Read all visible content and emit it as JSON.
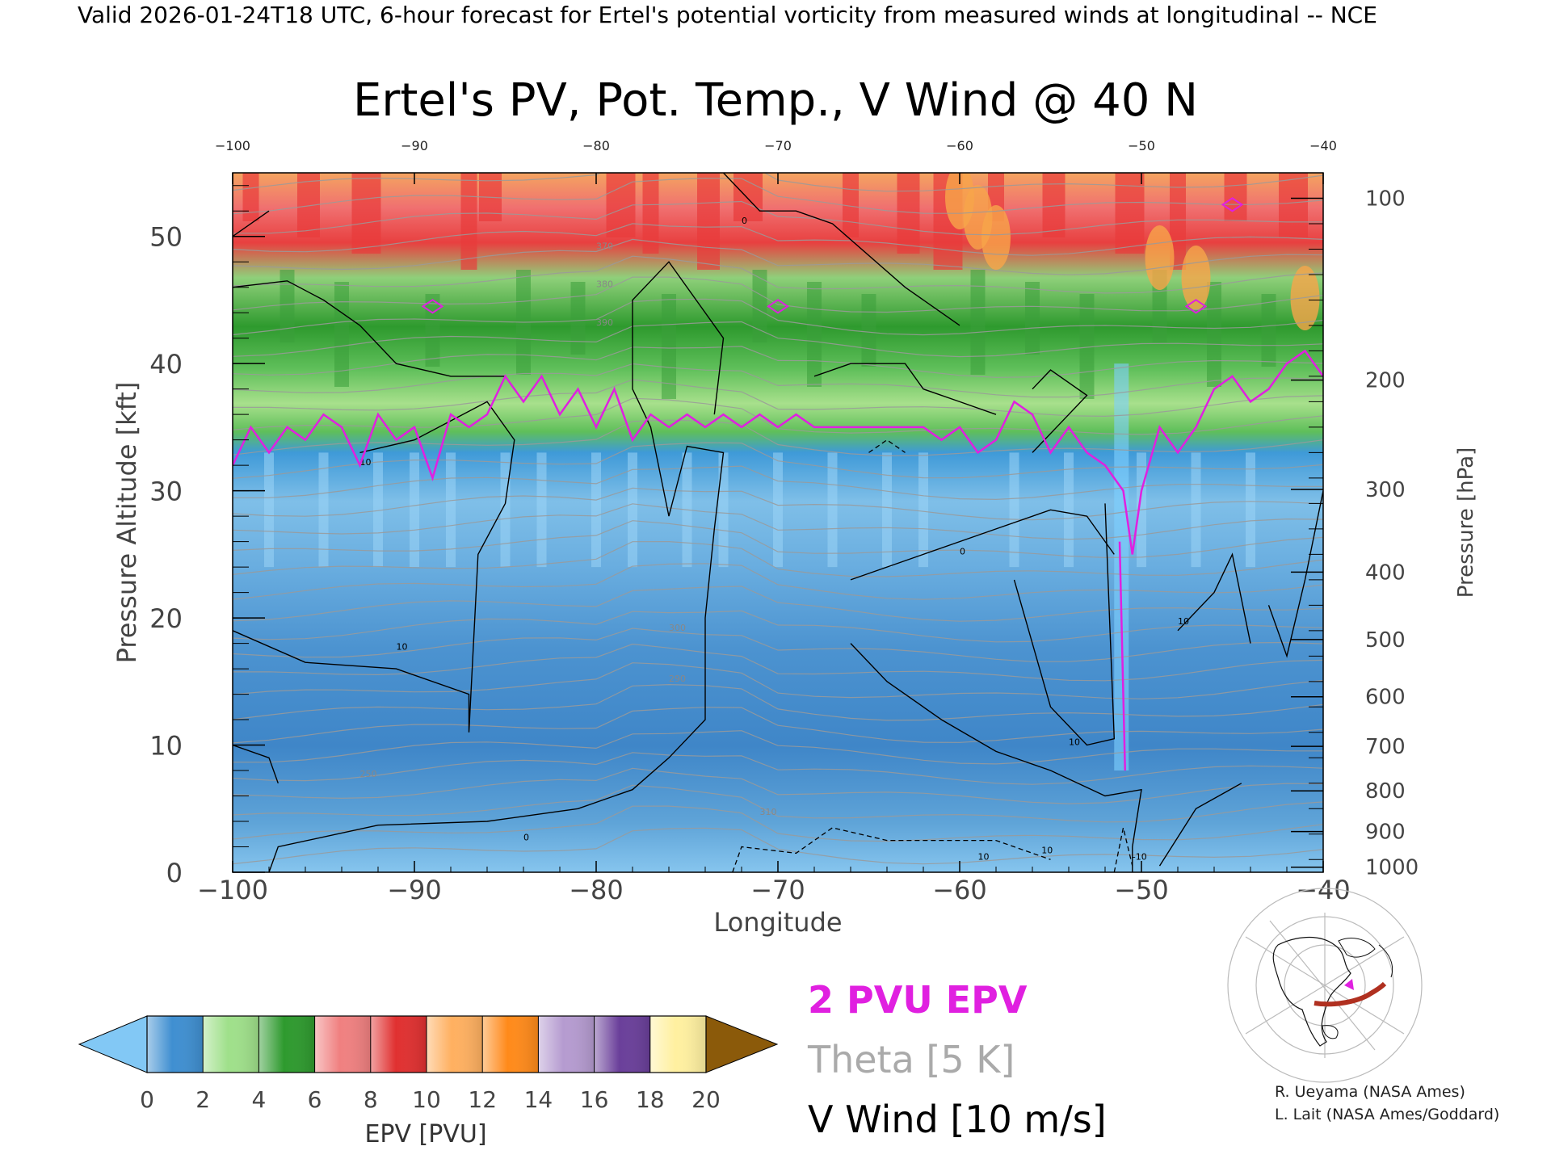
{
  "header": "Valid 2026-01-24T18 UTC, 6-hour forecast for Ertel's potential vorticity from measured winds at longitudinal -- NCE",
  "chart_data": {
    "type": "heatmap",
    "title": "Ertel's PV, Pot. Temp., V Wind @ 40 N",
    "xlabel": "Longitude",
    "ylabel": "Pressure Altitude [kft]",
    "y2label": "Pressure [hPa]",
    "xlim": [
      -100,
      -40
    ],
    "ylim": [
      0,
      55
    ],
    "x_ticks": [
      -100,
      -90,
      -80,
      -70,
      -60,
      -50,
      -40
    ],
    "x_tick_labels": [
      "−100",
      "−90",
      "−80",
      "−70",
      "−60",
      "−50",
      "−40"
    ],
    "top_tick_labels": [
      "−100",
      "−90",
      "−80",
      "−70",
      "−60",
      "−50",
      "−40"
    ],
    "y_ticks": [
      0,
      10,
      20,
      30,
      40,
      50
    ],
    "pressure_ticks": [
      {
        "label": "100",
        "kft": 53.0
      },
      {
        "label": "200",
        "kft": 38.7
      },
      {
        "label": "300",
        "kft": 30.1
      },
      {
        "label": "400",
        "kft": 23.6
      },
      {
        "label": "500",
        "kft": 18.3
      },
      {
        "label": "600",
        "kft": 13.8
      },
      {
        "label": "700",
        "kft": 9.9
      },
      {
        "label": "800",
        "kft": 6.4
      },
      {
        "label": "900",
        "kft": 3.2
      },
      {
        "label": "1000",
        "kft": 0.4
      }
    ],
    "tropopause_2pvu_kft": {
      "lon": [
        -100,
        -99,
        -98,
        -97,
        -96,
        -95,
        -94,
        -93,
        -92,
        -91,
        -90,
        -89,
        -88,
        -87,
        -86,
        -85,
        -84,
        -83,
        -82,
        -81,
        -80,
        -79,
        -78,
        -77,
        -76,
        -75,
        -74,
        -73,
        -72,
        -71,
        -70,
        -69,
        -68,
        -67,
        -66,
        -65,
        -64,
        -63,
        -62,
        -61,
        -60,
        -59,
        -58,
        -57,
        -56,
        -55,
        -54,
        -53,
        -52,
        -51,
        -50.5,
        -50,
        -49,
        -48,
        -47,
        -46,
        -45,
        -44,
        -43,
        -42,
        -41,
        -40
      ],
      "alt": [
        32,
        35,
        33,
        35,
        34,
        36,
        35,
        32,
        36,
        34,
        35,
        31,
        36,
        35,
        36,
        39,
        37,
        39,
        36,
        38,
        35,
        38,
        34,
        36,
        35,
        36,
        35,
        36,
        35,
        36,
        35,
        36,
        35,
        35,
        35,
        35,
        35,
        35,
        35,
        34,
        35,
        33,
        34,
        37,
        36,
        33,
        35,
        33,
        32,
        30,
        25,
        30,
        35,
        33,
        35,
        38,
        39,
        37,
        38,
        40,
        41,
        39
      ]
    },
    "v_wind_contours": [
      {
        "label": "0",
        "note": "solid"
      },
      {
        "label": "10",
        "note": "solid"
      },
      {
        "label": "-10",
        "note": "dashed"
      }
    ],
    "theta_labels": [
      "250",
      "290",
      "300",
      "310",
      "370",
      "380",
      "390"
    ],
    "colorbar": {
      "label": "EPV [PVU]",
      "tick_labels": [
        "0",
        "2",
        "4",
        "6",
        "8",
        "10",
        "12",
        "14",
        "16",
        "18",
        "20"
      ],
      "colors": [
        "#3f8fd1",
        "#9fe08a",
        "#2e9a2e",
        "#f08080",
        "#e03030",
        "#ffb060",
        "#ff8a1a",
        "#b59bd0",
        "#6a3f9a",
        "#fff0a0"
      ],
      "under_color": "#82c8f5",
      "over_color": "#8b5a0a"
    }
  },
  "legend": {
    "pvu_label": "2 PVU EPV",
    "theta_label": "Theta [5 K]",
    "wind_label": "V Wind [10 m/s]"
  },
  "colors": {
    "pvu_line": "#e020e0",
    "theta_line": "#999999",
    "wind_line": "#000000"
  },
  "credits": {
    "line1": "R. Ueyama (NASA Ames)",
    "line2": "L. Lait (NASA Ames/Goddard)"
  },
  "inset_map": {
    "icon": "globe-locator-icon"
  }
}
